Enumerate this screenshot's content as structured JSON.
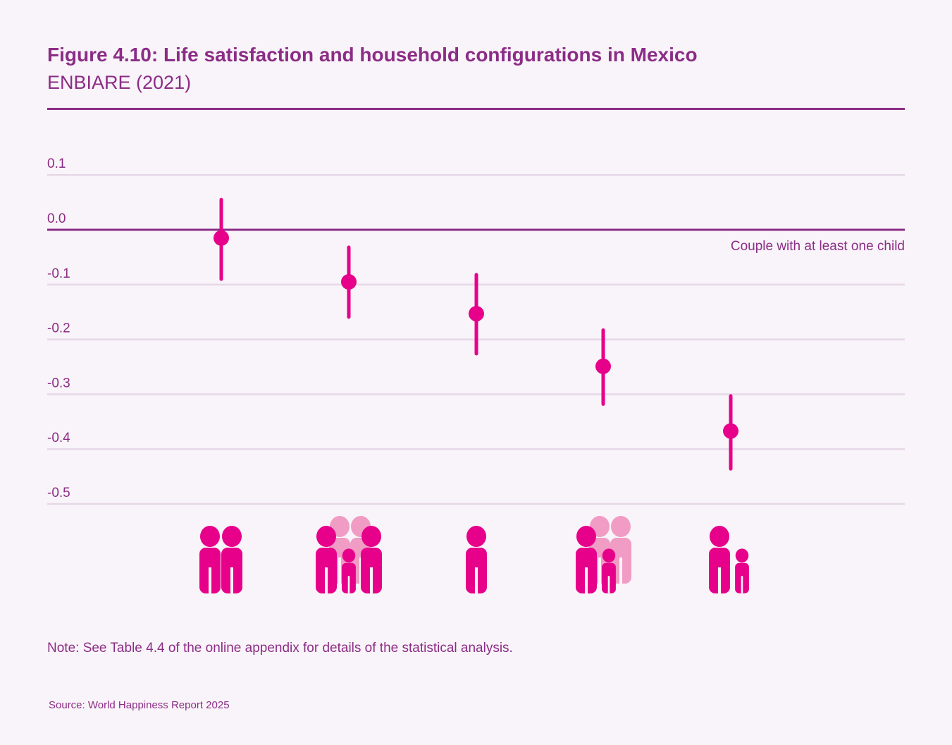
{
  "header": {
    "title": "Figure 4.10: Life satisfaction and household configurations in Mexico",
    "subtitle": "ENBIARE (2021)"
  },
  "chart_data": {
    "type": "scatter",
    "subtype": "point estimates with confidence intervals",
    "title": "Figure 4.10: Life satisfaction and household configurations in Mexico",
    "subtitle": "ENBIARE (2021)",
    "xlabel": "",
    "ylabel": "",
    "ylim": [
      -0.5,
      0.1
    ],
    "yticks": [
      "0.1",
      "0.0",
      "-0.1",
      "-0.2",
      "-0.3",
      "-0.4",
      "-0.5"
    ],
    "ytick_values": [
      0.1,
      0.0,
      -0.1,
      -0.2,
      -0.3,
      -0.4,
      -0.5
    ],
    "grid": true,
    "reference_line": {
      "value": 0.0,
      "label": "Couple with at least one child"
    },
    "categories": [
      "couple-icon",
      "couple-with-child-and-others-icon",
      "single-person-icon",
      "single-parent-with-child-and-others-icon",
      "single-parent-with-child-icon"
    ],
    "values": [
      -0.015,
      -0.095,
      -0.153,
      -0.249,
      -0.367
    ],
    "ci_low": [
      -0.09,
      -0.159,
      -0.226,
      -0.318,
      -0.436
    ],
    "ci_high": [
      0.055,
      -0.032,
      -0.082,
      -0.183,
      -0.303
    ],
    "colors": {
      "point": "#e6008a",
      "icon": "#e6008a",
      "icon_faded": "#f09cc4",
      "axis": "#8b2d86",
      "grid": "#e6d8e8"
    }
  },
  "footer": {
    "note": "Note: See Table 4.4 of the online appendix for details of the statistical analysis.",
    "source": "Source: World Happiness Report 2025"
  }
}
